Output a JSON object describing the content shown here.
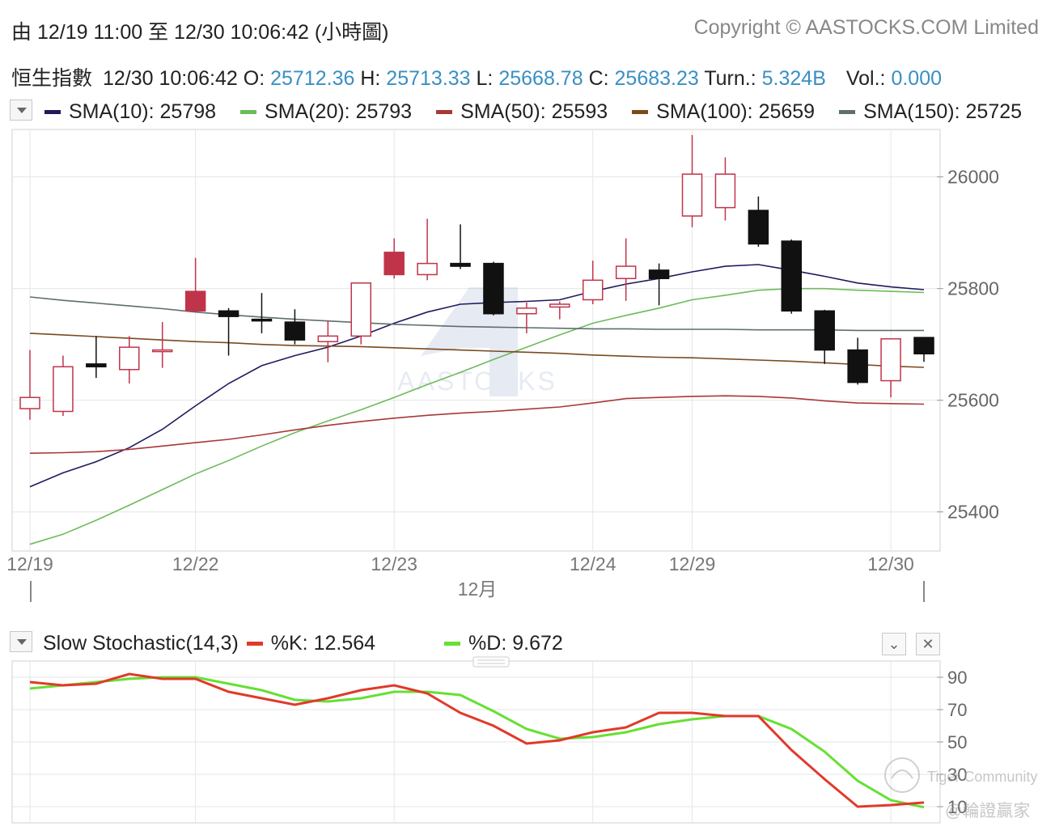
{
  "header": {
    "range_text": "由  12/19 11:00 至  12/30 10:06:42 (小時圖)",
    "copyright": "Copyright © AASTOCKS.COM Limited"
  },
  "quote": {
    "name": "恒生指數",
    "time": "12/30 10:06:42",
    "o_label": "O:",
    "o": "25712.36",
    "h_label": "H:",
    "h": "25713.33",
    "l_label": "L:",
    "l": "25668.78",
    "c_label": "C:",
    "c": "25683.23",
    "turn_label": "Turn.:",
    "turn": "5.324B",
    "vol_label": "Vol.:",
    "vol": "0.000"
  },
  "sma_legend": [
    {
      "label": "SMA(10): 25798",
      "color": "#1f1a5e"
    },
    {
      "label": "SMA(20): 25793",
      "color": "#6dbb5a"
    },
    {
      "label": "SMA(50): 25593",
      "color": "#a83838"
    },
    {
      "label": "SMA(100): 25659",
      "color": "#7a4a1e"
    },
    {
      "label": "SMA(150): 25725",
      "color": "#5f6e6e"
    }
  ],
  "stoch_legend": {
    "title": "Slow Stochastic(14,3)",
    "k_label": "%K: 12.564",
    "k_color": "#e03a2a",
    "d_label": "%D: 9.672",
    "d_color": "#66e033"
  },
  "watermark": "AASTOCKS",
  "overlay": {
    "community": "Tiger Community",
    "handle": "@輪證贏家"
  },
  "chart_data": [
    {
      "type": "candlestick",
      "title": "恒生指數",
      "x_tick_labels": [
        {
          "label": "12/19",
          "index": 0
        },
        {
          "label": "12/22",
          "index": 5
        },
        {
          "label": "12/23",
          "index": 11
        },
        {
          "label": "12/24",
          "index": 17
        },
        {
          "label": "12/29",
          "index": 20
        },
        {
          "label": "12/30",
          "index": 26
        }
      ],
      "month_label": "12月",
      "y_ticks": [
        25400,
        25600,
        25800,
        26000
      ],
      "ylim": [
        25330,
        26085
      ],
      "up_color": "#c0344a",
      "down_color": "#111111",
      "candles": [
        {
          "o": 25585,
          "h": 25690,
          "l": 25565,
          "c": 25605
        },
        {
          "o": 25580,
          "h": 25680,
          "l": 25572,
          "c": 25660
        },
        {
          "o": 25665,
          "h": 25715,
          "l": 25640,
          "c": 25660
        },
        {
          "o": 25655,
          "h": 25715,
          "l": 25630,
          "c": 25695
        },
        {
          "o": 25690,
          "h": 25740,
          "l": 25658,
          "c": 25690
        },
        {
          "o": 25760,
          "h": 25855,
          "l": 25758,
          "c": 25795
        },
        {
          "o": 25760,
          "h": 25765,
          "l": 25680,
          "c": 25750
        },
        {
          "o": 25745,
          "h": 25792,
          "l": 25720,
          "c": 25743
        },
        {
          "o": 25740,
          "h": 25763,
          "l": 25700,
          "c": 25708
        },
        {
          "o": 25705,
          "h": 25742,
          "l": 25668,
          "c": 25715
        },
        {
          "o": 25715,
          "h": 25810,
          "l": 25700,
          "c": 25810
        },
        {
          "o": 25825,
          "h": 25890,
          "l": 25818,
          "c": 25865
        },
        {
          "o": 25825,
          "h": 25925,
          "l": 25815,
          "c": 25845
        },
        {
          "o": 25845,
          "h": 25915,
          "l": 25835,
          "c": 25840
        },
        {
          "o": 25845,
          "h": 25848,
          "l": 25752,
          "c": 25755
        },
        {
          "o": 25755,
          "h": 25775,
          "l": 25720,
          "c": 25765
        },
        {
          "o": 25767,
          "h": 25777,
          "l": 25745,
          "c": 25772
        },
        {
          "o": 25780,
          "h": 25850,
          "l": 25772,
          "c": 25815
        },
        {
          "o": 25818,
          "h": 25890,
          "l": 25778,
          "c": 25840
        },
        {
          "o": 25833,
          "h": 25845,
          "l": 25770,
          "c": 25818
        },
        {
          "o": 25930,
          "h": 26075,
          "l": 25910,
          "c": 26005
        },
        {
          "o": 25945,
          "h": 26035,
          "l": 25922,
          "c": 26005
        },
        {
          "o": 25940,
          "h": 25965,
          "l": 25875,
          "c": 25880
        },
        {
          "o": 25885,
          "h": 25888,
          "l": 25755,
          "c": 25760
        },
        {
          "o": 25760,
          "h": 25762,
          "l": 25665,
          "c": 25690
        },
        {
          "o": 25690,
          "h": 25712,
          "l": 25628,
          "c": 25632
        },
        {
          "o": 25635,
          "h": 25710,
          "l": 25605,
          "c": 25710
        },
        {
          "o": 25712.36,
          "h": 25713.33,
          "l": 25668.78,
          "c": 25683.23
        }
      ],
      "series": [
        {
          "name": "SMA(10)",
          "color": "#1f1a5e",
          "points": [
            [
              0,
              25445
            ],
            [
              1,
              25470
            ],
            [
              2,
              25490
            ],
            [
              3,
              25515
            ],
            [
              4,
              25548
            ],
            [
              5,
              25590
            ],
            [
              6,
              25630
            ],
            [
              7,
              25662
            ],
            [
              8,
              25680
            ],
            [
              9,
              25695
            ],
            [
              10,
              25715
            ],
            [
              11,
              25738
            ],
            [
              12,
              25758
            ],
            [
              13,
              25772
            ],
            [
              14,
              25775
            ],
            [
              15,
              25777
            ],
            [
              16,
              25780
            ],
            [
              17,
              25795
            ],
            [
              18,
              25808
            ],
            [
              19,
              25818
            ],
            [
              20,
              25830
            ],
            [
              21,
              25840
            ],
            [
              22,
              25843
            ],
            [
              23,
              25833
            ],
            [
              24,
              25822
            ],
            [
              25,
              25810
            ],
            [
              26,
              25803
            ],
            [
              27,
              25798
            ]
          ]
        },
        {
          "name": "SMA(20)",
          "color": "#6dbb5a",
          "points": [
            [
              0,
              25342
            ],
            [
              1,
              25360
            ],
            [
              2,
              25385
            ],
            [
              3,
              25412
            ],
            [
              4,
              25440
            ],
            [
              5,
              25468
            ],
            [
              6,
              25492
            ],
            [
              7,
              25518
            ],
            [
              8,
              25542
            ],
            [
              9,
              25563
            ],
            [
              10,
              25583
            ],
            [
              11,
              25605
            ],
            [
              12,
              25628
            ],
            [
              13,
              25650
            ],
            [
              14,
              25673
            ],
            [
              15,
              25695
            ],
            [
              16,
              25717
            ],
            [
              17,
              25738
            ],
            [
              18,
              25752
            ],
            [
              19,
              25765
            ],
            [
              20,
              25780
            ],
            [
              21,
              25788
            ],
            [
              22,
              25797
            ],
            [
              23,
              25800
            ],
            [
              24,
              25800
            ],
            [
              25,
              25797
            ],
            [
              26,
              25795
            ],
            [
              27,
              25793
            ]
          ]
        },
        {
          "name": "SMA(50)",
          "color": "#a83838",
          "points": [
            [
              0,
              25505
            ],
            [
              1,
              25506
            ],
            [
              2,
              25508
            ],
            [
              3,
              25512
            ],
            [
              4,
              25518
            ],
            [
              5,
              25524
            ],
            [
              6,
              25530
            ],
            [
              7,
              25538
            ],
            [
              8,
              25547
            ],
            [
              9,
              25555
            ],
            [
              10,
              25562
            ],
            [
              11,
              25568
            ],
            [
              12,
              25573
            ],
            [
              13,
              25577
            ],
            [
              14,
              25580
            ],
            [
              15,
              25584
            ],
            [
              16,
              25588
            ],
            [
              17,
              25595
            ],
            [
              18,
              25603
            ],
            [
              19,
              25605
            ],
            [
              20,
              25607
            ],
            [
              21,
              25608
            ],
            [
              22,
              25607
            ],
            [
              23,
              25604
            ],
            [
              24,
              25599
            ],
            [
              25,
              25595
            ],
            [
              26,
              25594
            ],
            [
              27,
              25593
            ]
          ]
        },
        {
          "name": "SMA(100)",
          "color": "#7a4a1e",
          "points": [
            [
              0,
              25720
            ],
            [
              1,
              25717
            ],
            [
              2,
              25714
            ],
            [
              3,
              25711
            ],
            [
              4,
              25708
            ],
            [
              5,
              25705
            ],
            [
              6,
              25703
            ],
            [
              7,
              25700
            ],
            [
              8,
              25698
            ],
            [
              9,
              25697
            ],
            [
              10,
              25696
            ],
            [
              11,
              25694
            ],
            [
              12,
              25692
            ],
            [
              13,
              25690
            ],
            [
              14,
              25688
            ],
            [
              15,
              25686
            ],
            [
              16,
              25684
            ],
            [
              17,
              25681
            ],
            [
              18,
              25679
            ],
            [
              19,
              25677
            ],
            [
              20,
              25676
            ],
            [
              21,
              25674
            ],
            [
              22,
              25672
            ],
            [
              23,
              25670
            ],
            [
              24,
              25667
            ],
            [
              25,
              25664
            ],
            [
              26,
              25661
            ],
            [
              27,
              25659
            ]
          ]
        },
        {
          "name": "SMA(150)",
          "color": "#5f6e6e",
          "points": [
            [
              0,
              25785
            ],
            [
              1,
              25779
            ],
            [
              2,
              25774
            ],
            [
              3,
              25769
            ],
            [
              4,
              25764
            ],
            [
              5,
              25758
            ],
            [
              6,
              25753
            ],
            [
              7,
              25749
            ],
            [
              8,
              25745
            ],
            [
              9,
              25742
            ],
            [
              10,
              25739
            ],
            [
              11,
              25736
            ],
            [
              12,
              25734
            ],
            [
              13,
              25732
            ],
            [
              14,
              25731
            ],
            [
              15,
              25730
            ],
            [
              16,
              25729
            ],
            [
              17,
              25728
            ],
            [
              18,
              25728
            ],
            [
              19,
              25727
            ],
            [
              20,
              25727
            ],
            [
              21,
              25727
            ],
            [
              22,
              25726
            ],
            [
              23,
              25726
            ],
            [
              24,
              25726
            ],
            [
              25,
              25725
            ],
            [
              26,
              25725
            ],
            [
              27,
              25725
            ]
          ]
        }
      ]
    },
    {
      "type": "line",
      "title": "Slow Stochastic(14,3)",
      "y_ticks": [
        10,
        30,
        50,
        70,
        90
      ],
      "ylim": [
        0,
        100
      ],
      "series": [
        {
          "name": "%K",
          "color": "#e03a2a",
          "points": [
            [
              0,
              87
            ],
            [
              1,
              85
            ],
            [
              2,
              86
            ],
            [
              3,
              92
            ],
            [
              4,
              89
            ],
            [
              5,
              89
            ],
            [
              6,
              81
            ],
            [
              7,
              77
            ],
            [
              8,
              73
            ],
            [
              9,
              77
            ],
            [
              10,
              82
            ],
            [
              11,
              85
            ],
            [
              12,
              80
            ],
            [
              13,
              68
            ],
            [
              14,
              60
            ],
            [
              15,
              49
            ],
            [
              16,
              51
            ],
            [
              17,
              56
            ],
            [
              18,
              59
            ],
            [
              19,
              68
            ],
            [
              20,
              68
            ],
            [
              21,
              66
            ],
            [
              22,
              66
            ],
            [
              23,
              45
            ],
            [
              24,
              27
            ],
            [
              25,
              10
            ],
            [
              26,
              11
            ],
            [
              27,
              12.564
            ]
          ]
        },
        {
          "name": "%D",
          "color": "#66e033",
          "points": [
            [
              0,
              83
            ],
            [
              1,
              85
            ],
            [
              2,
              87
            ],
            [
              3,
              89
            ],
            [
              4,
              90
            ],
            [
              5,
              90
            ],
            [
              6,
              86
            ],
            [
              7,
              82
            ],
            [
              8,
              76
            ],
            [
              9,
              75
            ],
            [
              10,
              77
            ],
            [
              11,
              81
            ],
            [
              12,
              81
            ],
            [
              13,
              79
            ],
            [
              14,
              69
            ],
            [
              15,
              58
            ],
            [
              16,
              52
            ],
            [
              17,
              53
            ],
            [
              18,
              56
            ],
            [
              19,
              61
            ],
            [
              20,
              64
            ],
            [
              21,
              66
            ],
            [
              22,
              66
            ],
            [
              23,
              58
            ],
            [
              24,
              44
            ],
            [
              25,
              26
            ],
            [
              26,
              14
            ],
            [
              27,
              9.672
            ]
          ]
        }
      ]
    }
  ]
}
